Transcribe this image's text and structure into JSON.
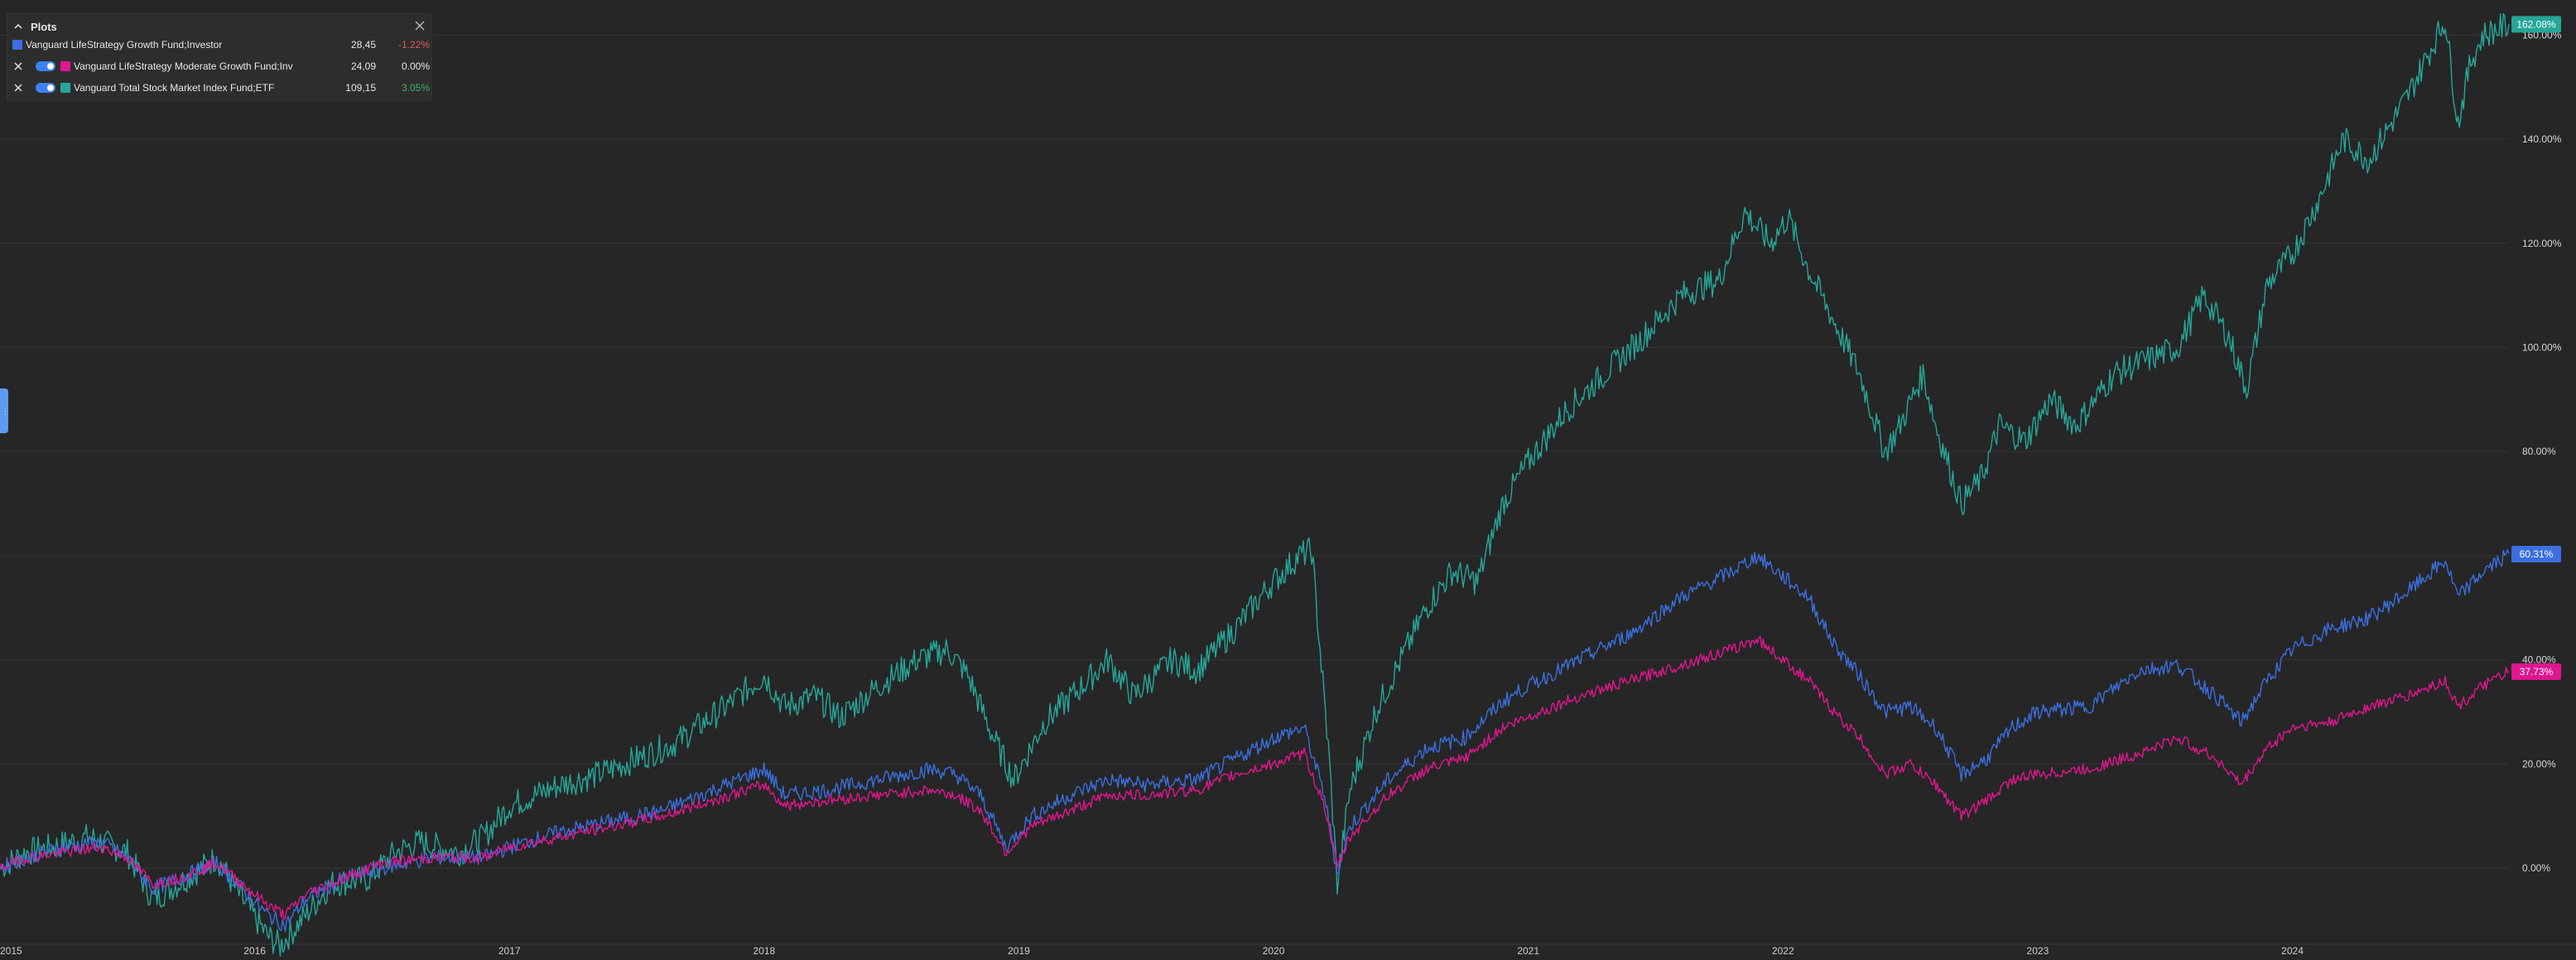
{
  "legend": {
    "title": "Plots",
    "rows": [
      {
        "name": "Vanguard LifeStrategy Growth Fund;Investor",
        "value": "28,45",
        "change": "-1.22%",
        "change_color": "#e05c5c",
        "color": "#3b6fe0"
      },
      {
        "name": "Vanguard LifeStrategy Moderate Growth Fund;Inv",
        "value": "24,09",
        "change": "0.00%",
        "change_color": "#e8e8e8",
        "color": "#e0168f"
      },
      {
        "name": "Vanguard Total Stock Market Index Fund;ETF",
        "value": "109,15",
        "change": "3.05%",
        "change_color": "#3cb371",
        "color": "#26a69a"
      }
    ]
  },
  "chart_data": {
    "type": "line",
    "x_tick_labels": [
      "2015",
      "2016",
      "2017",
      "2018",
      "2019",
      "2020",
      "2021",
      "2022",
      "2023",
      "2024"
    ],
    "y_tick_labels": [
      "0.00%",
      "20.00%",
      "40.00%",
      "60.00%",
      "80.00%",
      "100.00%",
      "120.00%",
      "140.00%",
      "160.00%"
    ],
    "ylim": [
      -17,
      165
    ],
    "xlim": [
      2015.0,
      2024.85
    ],
    "grid": true,
    "series": [
      {
        "name": "Vanguard Total Stock Market Index Fund;ETF",
        "color": "#26a69a",
        "last_label": "162.08%",
        "points": [
          [
            2015.0,
            0
          ],
          [
            2015.1,
            3
          ],
          [
            2015.2,
            4
          ],
          [
            2015.35,
            6
          ],
          [
            2015.5,
            3
          ],
          [
            2015.6,
            -6
          ],
          [
            2015.7,
            -3
          ],
          [
            2015.85,
            2
          ],
          [
            2015.95,
            -6
          ],
          [
            2016.05,
            -13
          ],
          [
            2016.1,
            -15
          ],
          [
            2016.2,
            -9
          ],
          [
            2016.3,
            -3
          ],
          [
            2016.45,
            -2
          ],
          [
            2016.55,
            3
          ],
          [
            2016.65,
            5
          ],
          [
            2016.8,
            3
          ],
          [
            2016.9,
            6
          ],
          [
            2017.0,
            12
          ],
          [
            2017.2,
            16
          ],
          [
            2017.35,
            18
          ],
          [
            2017.5,
            21
          ],
          [
            2017.65,
            24
          ],
          [
            2017.85,
            31
          ],
          [
            2018.0,
            37
          ],
          [
            2018.08,
            31
          ],
          [
            2018.2,
            33
          ],
          [
            2018.3,
            29
          ],
          [
            2018.45,
            35
          ],
          [
            2018.6,
            40
          ],
          [
            2018.72,
            42
          ],
          [
            2018.8,
            37
          ],
          [
            2018.9,
            25
          ],
          [
            2018.98,
            17
          ],
          [
            2019.1,
            28
          ],
          [
            2019.25,
            35
          ],
          [
            2019.35,
            40
          ],
          [
            2019.45,
            33
          ],
          [
            2019.6,
            40
          ],
          [
            2019.7,
            38
          ],
          [
            2019.85,
            46
          ],
          [
            2019.98,
            54
          ],
          [
            2020.1,
            60
          ],
          [
            2020.15,
            61
          ],
          [
            2020.22,
            20
          ],
          [
            2020.25,
            -3
          ],
          [
            2020.3,
            15
          ],
          [
            2020.4,
            30
          ],
          [
            2020.5,
            40
          ],
          [
            2020.6,
            50
          ],
          [
            2020.7,
            57
          ],
          [
            2020.8,
            55
          ],
          [
            2020.9,
            70
          ],
          [
            2021.0,
            78
          ],
          [
            2021.15,
            88
          ],
          [
            2021.3,
            95
          ],
          [
            2021.45,
            102
          ],
          [
            2021.6,
            110
          ],
          [
            2021.75,
            113
          ],
          [
            2021.85,
            126
          ],
          [
            2021.95,
            120
          ],
          [
            2022.02,
            125
          ],
          [
            2022.1,
            115
          ],
          [
            2022.2,
            105
          ],
          [
            2022.3,
            95
          ],
          [
            2022.4,
            80
          ],
          [
            2022.45,
            84
          ],
          [
            2022.55,
            95
          ],
          [
            2022.6,
            85
          ],
          [
            2022.7,
            70
          ],
          [
            2022.78,
            75
          ],
          [
            2022.85,
            85
          ],
          [
            2022.95,
            82
          ],
          [
            2023.05,
            90
          ],
          [
            2023.15,
            85
          ],
          [
            2023.3,
            95
          ],
          [
            2023.45,
            98
          ],
          [
            2023.55,
            100
          ],
          [
            2023.65,
            110
          ],
          [
            2023.75,
            102
          ],
          [
            2023.82,
            92
          ],
          [
            2023.9,
            112
          ],
          [
            2024.0,
            118
          ],
          [
            2024.1,
            128
          ],
          [
            2024.2,
            140
          ],
          [
            2024.3,
            136
          ],
          [
            2024.45,
            148
          ],
          [
            2024.55,
            158
          ],
          [
            2024.6,
            163
          ],
          [
            2024.65,
            143
          ],
          [
            2024.7,
            155
          ],
          [
            2024.75,
            160
          ],
          [
            2024.85,
            162.08
          ]
        ]
      },
      {
        "name": "Vanguard LifeStrategy Growth Fund;Investor",
        "color": "#3b6fe0",
        "last_label": "60.31%",
        "points": [
          [
            2015.0,
            0
          ],
          [
            2015.1,
            2
          ],
          [
            2015.25,
            4
          ],
          [
            2015.4,
            5
          ],
          [
            2015.5,
            2
          ],
          [
            2015.6,
            -4
          ],
          [
            2015.7,
            -2
          ],
          [
            2015.85,
            1
          ],
          [
            2015.95,
            -4
          ],
          [
            2016.05,
            -9
          ],
          [
            2016.12,
            -11
          ],
          [
            2016.2,
            -6
          ],
          [
            2016.35,
            -2
          ],
          [
            2016.5,
            0
          ],
          [
            2016.7,
            2
          ],
          [
            2016.9,
            2
          ],
          [
            2017.0,
            4
          ],
          [
            2017.2,
            7
          ],
          [
            2017.4,
            9
          ],
          [
            2017.6,
            11
          ],
          [
            2017.8,
            15
          ],
          [
            2018.0,
            19
          ],
          [
            2018.08,
            14
          ],
          [
            2018.25,
            15
          ],
          [
            2018.45,
            17
          ],
          [
            2018.65,
            19
          ],
          [
            2018.75,
            18
          ],
          [
            2018.85,
            14
          ],
          [
            2018.95,
            4
          ],
          [
            2019.05,
            10
          ],
          [
            2019.2,
            14
          ],
          [
            2019.35,
            17
          ],
          [
            2019.5,
            16
          ],
          [
            2019.7,
            17
          ],
          [
            2019.85,
            21
          ],
          [
            2020.0,
            25
          ],
          [
            2020.12,
            27
          ],
          [
            2020.2,
            14
          ],
          [
            2020.25,
            -1
          ],
          [
            2020.3,
            8
          ],
          [
            2020.45,
            17
          ],
          [
            2020.6,
            23
          ],
          [
            2020.75,
            25
          ],
          [
            2020.9,
            32
          ],
          [
            2021.0,
            35
          ],
          [
            2021.2,
            40
          ],
          [
            2021.4,
            45
          ],
          [
            2021.6,
            52
          ],
          [
            2021.8,
            57
          ],
          [
            2021.9,
            60
          ],
          [
            2022.0,
            56
          ],
          [
            2022.1,
            52
          ],
          [
            2022.2,
            43
          ],
          [
            2022.3,
            37
          ],
          [
            2022.4,
            30
          ],
          [
            2022.5,
            31
          ],
          [
            2022.6,
            27
          ],
          [
            2022.7,
            18
          ],
          [
            2022.8,
            21
          ],
          [
            2022.9,
            27
          ],
          [
            2023.0,
            30
          ],
          [
            2023.2,
            31
          ],
          [
            2023.4,
            38
          ],
          [
            2023.55,
            39
          ],
          [
            2023.7,
            33
          ],
          [
            2023.8,
            28
          ],
          [
            2023.9,
            36
          ],
          [
            2024.0,
            42
          ],
          [
            2024.15,
            46
          ],
          [
            2024.3,
            48
          ],
          [
            2024.45,
            53
          ],
          [
            2024.6,
            59
          ],
          [
            2024.65,
            52
          ],
          [
            2024.75,
            57
          ],
          [
            2024.85,
            60.31
          ]
        ]
      },
      {
        "name": "Vanguard LifeStrategy Moderate Growth Fund;Inv",
        "color": "#e0168f",
        "last_label": "37.73%",
        "points": [
          [
            2015.0,
            0
          ],
          [
            2015.1,
            2
          ],
          [
            2015.25,
            3
          ],
          [
            2015.4,
            4
          ],
          [
            2015.5,
            2
          ],
          [
            2015.6,
            -3
          ],
          [
            2015.7,
            -2
          ],
          [
            2015.85,
            1
          ],
          [
            2015.95,
            -3
          ],
          [
            2016.05,
            -7
          ],
          [
            2016.12,
            -9
          ],
          [
            2016.2,
            -5
          ],
          [
            2016.35,
            -2
          ],
          [
            2016.5,
            1
          ],
          [
            2016.7,
            2
          ],
          [
            2016.9,
            2
          ],
          [
            2017.0,
            4
          ],
          [
            2017.2,
            6
          ],
          [
            2017.4,
            8
          ],
          [
            2017.6,
            10
          ],
          [
            2017.8,
            13
          ],
          [
            2018.0,
            16
          ],
          [
            2018.08,
            12
          ],
          [
            2018.25,
            13
          ],
          [
            2018.45,
            14
          ],
          [
            2018.65,
            15
          ],
          [
            2018.75,
            14
          ],
          [
            2018.85,
            11
          ],
          [
            2018.95,
            3
          ],
          [
            2019.05,
            8
          ],
          [
            2019.2,
            11
          ],
          [
            2019.35,
            14
          ],
          [
            2019.5,
            14
          ],
          [
            2019.7,
            15
          ],
          [
            2019.85,
            18
          ],
          [
            2020.0,
            20
          ],
          [
            2020.12,
            22
          ],
          [
            2020.2,
            12
          ],
          [
            2020.25,
            0
          ],
          [
            2020.3,
            6
          ],
          [
            2020.45,
            14
          ],
          [
            2020.6,
            19
          ],
          [
            2020.75,
            21
          ],
          [
            2020.9,
            27
          ],
          [
            2021.0,
            29
          ],
          [
            2021.2,
            33
          ],
          [
            2021.4,
            36
          ],
          [
            2021.6,
            39
          ],
          [
            2021.8,
            42
          ],
          [
            2021.9,
            44
          ],
          [
            2022.0,
            40
          ],
          [
            2022.1,
            36
          ],
          [
            2022.2,
            30
          ],
          [
            2022.3,
            25
          ],
          [
            2022.4,
            18
          ],
          [
            2022.5,
            20
          ],
          [
            2022.6,
            16
          ],
          [
            2022.7,
            10
          ],
          [
            2022.8,
            13
          ],
          [
            2022.9,
            17
          ],
          [
            2023.0,
            18
          ],
          [
            2023.2,
            19
          ],
          [
            2023.4,
            22
          ],
          [
            2023.55,
            25
          ],
          [
            2023.7,
            21
          ],
          [
            2023.8,
            16
          ],
          [
            2023.9,
            23
          ],
          [
            2024.0,
            27
          ],
          [
            2024.15,
            28
          ],
          [
            2024.3,
            31
          ],
          [
            2024.45,
            33
          ],
          [
            2024.6,
            36
          ],
          [
            2024.65,
            31
          ],
          [
            2024.75,
            35
          ],
          [
            2024.85,
            37.73
          ]
        ]
      }
    ]
  },
  "icons": {
    "collapse": "chevron-up-icon",
    "close": "close-icon",
    "remove": "close-icon",
    "visibility": "toggle-icon"
  }
}
